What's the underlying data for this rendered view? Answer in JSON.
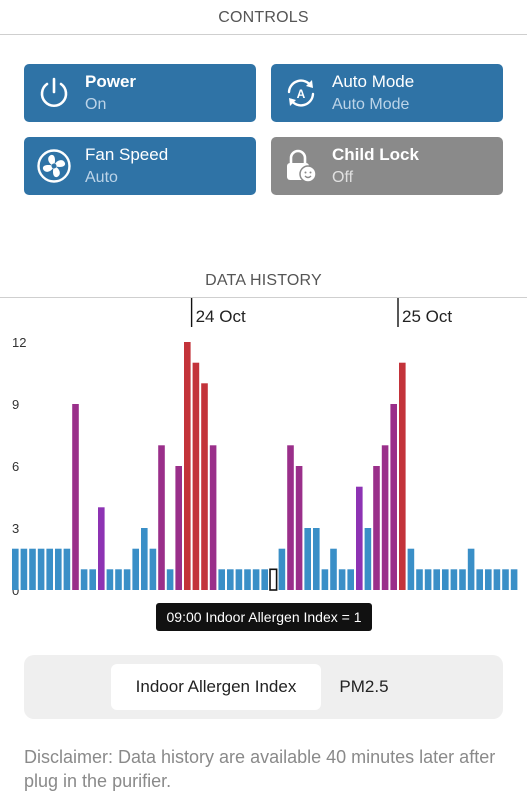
{
  "controls_section": {
    "title": "CONTROLS",
    "tiles": [
      {
        "name": "Power",
        "state": "On",
        "icon": "power-icon",
        "active": true
      },
      {
        "name": "Auto Mode",
        "state": "Auto Mode",
        "icon": "auto-mode-icon",
        "active": true
      },
      {
        "name": "Fan Speed",
        "state": "Auto",
        "icon": "fan-icon",
        "active": true
      },
      {
        "name": "Child Lock",
        "state": "Off",
        "icon": "child-lock-icon",
        "active": false
      }
    ],
    "colors": {
      "active": "#2f73a6",
      "inactive": "#8a8a8a"
    }
  },
  "history_section": {
    "title": "DATA HISTORY",
    "tooltip": "09:00 Indoor Allergen Index = 1",
    "tabs": [
      {
        "label": "Indoor Allergen Index",
        "selected": true
      },
      {
        "label": "PM2.5",
        "selected": false
      }
    ],
    "disclaimer": "Disclaimer: Data history are available 40 minutes later after plug in the purifier."
  },
  "chart_data": {
    "type": "bar",
    "title": "",
    "xlabel": "",
    "ylabel": "",
    "ylim": [
      0,
      12
    ],
    "yticks": [
      0,
      3,
      6,
      9,
      12
    ],
    "grid": false,
    "date_markers": [
      {
        "label": "24 Oct",
        "index": 21
      },
      {
        "label": "25 Oct",
        "index": 45
      }
    ],
    "values": [
      2,
      2,
      2,
      2,
      2,
      2,
      2,
      9,
      1,
      1,
      4,
      1,
      1,
      1,
      2,
      3,
      2,
      7,
      1,
      6,
      12,
      11,
      10,
      7,
      1,
      1,
      1,
      1,
      1,
      1,
      1,
      2,
      7,
      6,
      3,
      3,
      1,
      2,
      1,
      1,
      5,
      3,
      6,
      7,
      9,
      11,
      2,
      1,
      1,
      1,
      1,
      1,
      1,
      2,
      1,
      1,
      1,
      1,
      1
    ],
    "selected_index": 30,
    "color_scale": [
      {
        "max": 3,
        "color": "#3a8fc7"
      },
      {
        "max": 5,
        "color": "#8d33b3"
      },
      {
        "max": 9,
        "color": "#9a2f8a"
      },
      {
        "max": 12,
        "color": "#c3333a"
      }
    ]
  }
}
